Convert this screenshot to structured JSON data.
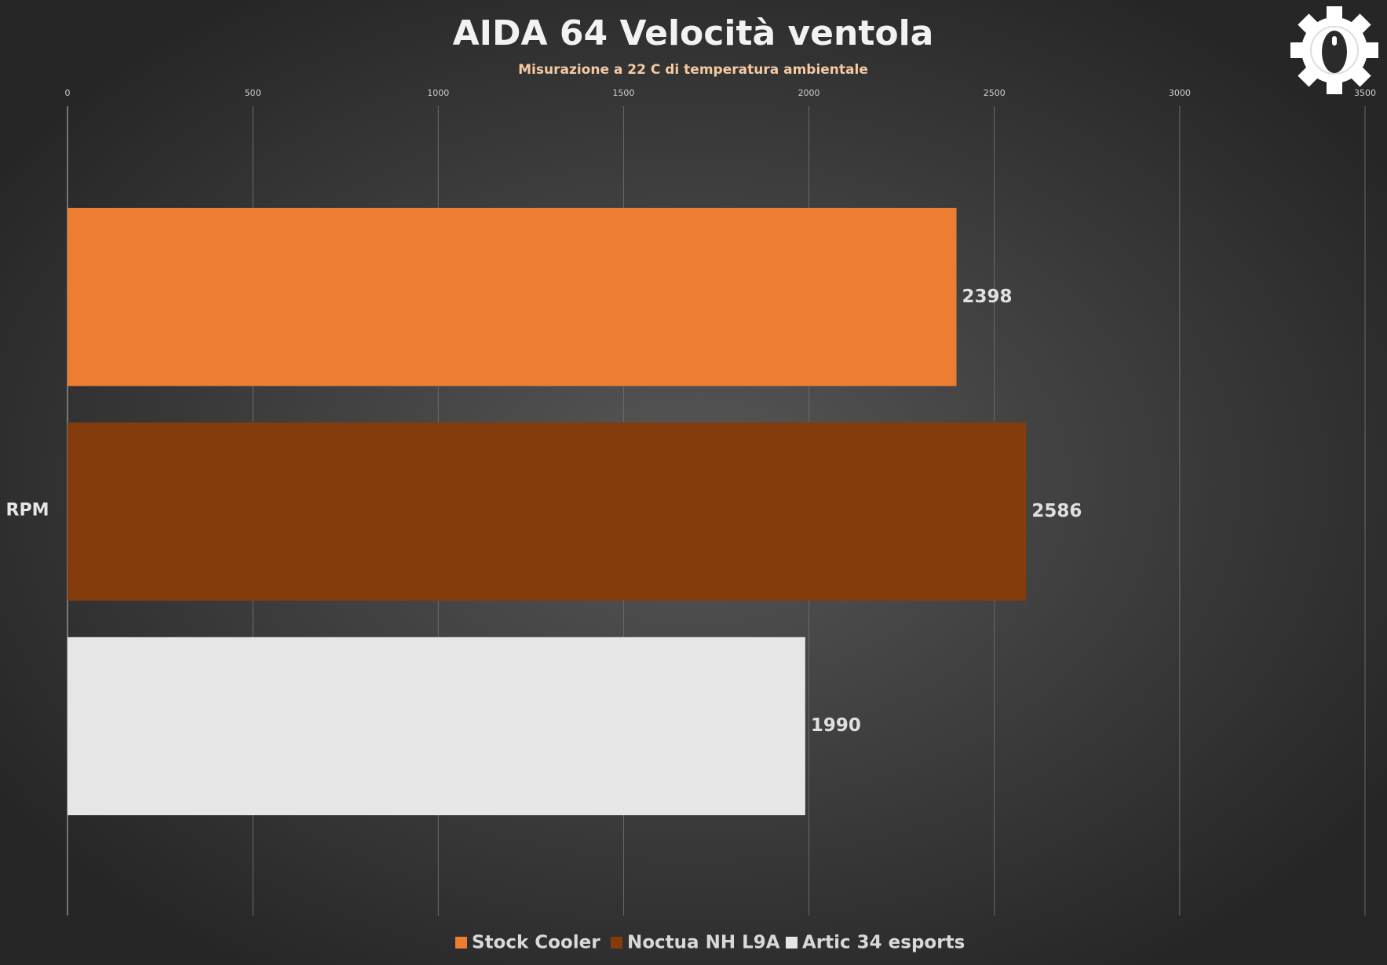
{
  "chart_data": {
    "type": "bar",
    "orientation": "horizontal",
    "title": "AIDA 64 Velocità ventola",
    "subtitle": "Misurazione  a 22 C di temperatura  ambientale",
    "categories": [
      "RPM"
    ],
    "series": [
      {
        "name": "Stock Cooler",
        "color": "#ed7d31",
        "values": [
          2398
        ]
      },
      {
        "name": "Noctua NH L9A",
        "color": "#843c0c",
        "values": [
          2586
        ]
      },
      {
        "name": "Artic 34 esports",
        "color": "#e7e6e6",
        "values": [
          1990
        ]
      }
    ],
    "xlim": [
      0,
      3500
    ],
    "xticks": [
      0,
      500,
      1000,
      1500,
      2000,
      2500,
      3000,
      3500
    ],
    "grid": true,
    "legend": "bottom"
  }
}
